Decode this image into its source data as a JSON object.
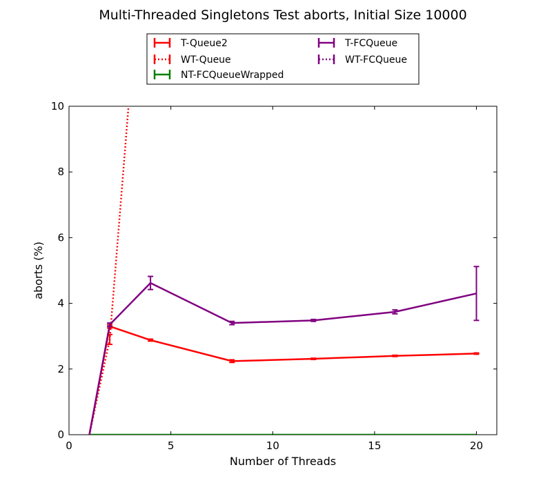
{
  "chart_data": {
    "type": "line",
    "title": "Multi-Threaded Singletons Test aborts, Initial Size 10000",
    "xlabel": "Number of Threads",
    "ylabel": "aborts (%)",
    "xlim": [
      0,
      21
    ],
    "ylim": [
      0,
      10
    ],
    "grid": false,
    "legend_position": "top-center",
    "xticks": [
      {
        "value": 0,
        "label": "0"
      },
      {
        "value": 5,
        "label": "5"
      },
      {
        "value": 10,
        "label": "10"
      },
      {
        "value": 15,
        "label": "15"
      },
      {
        "value": 20,
        "label": "20"
      }
    ],
    "yticks": [
      {
        "value": 0,
        "label": "0"
      },
      {
        "value": 2,
        "label": "2"
      },
      {
        "value": 4,
        "label": "4"
      },
      {
        "value": 6,
        "label": "6"
      },
      {
        "value": 8,
        "label": "8"
      },
      {
        "value": 10,
        "label": "10"
      }
    ],
    "series": [
      {
        "name": "T-Queue2",
        "color": "#ff0000",
        "style": "solid",
        "points": [
          {
            "x": 1,
            "y": 0.0,
            "err": 0.0
          },
          {
            "x": 2,
            "y": 3.3,
            "err": 0.05
          },
          {
            "x": 4,
            "y": 2.88,
            "err": 0.03
          },
          {
            "x": 8,
            "y": 2.24,
            "err": 0.04
          },
          {
            "x": 12,
            "y": 2.31,
            "err": 0.02
          },
          {
            "x": 16,
            "y": 2.4,
            "err": 0.02
          },
          {
            "x": 20,
            "y": 2.47,
            "err": 0.02
          }
        ]
      },
      {
        "name": "WT-Queue",
        "color": "#ff0000",
        "style": "dotted",
        "points": [
          {
            "x": 1,
            "y": 0.0,
            "err": 0.0
          },
          {
            "x": 2,
            "y": 2.9,
            "err": 0.15
          },
          {
            "x": 3,
            "y": 10.6,
            "err": 0.0
          }
        ]
      },
      {
        "name": "NT-FCQueueWrapped",
        "color": "#008000",
        "style": "solid",
        "points": [
          {
            "x": 1,
            "y": 0.0,
            "err": 0.0
          },
          {
            "x": 2,
            "y": 0.0,
            "err": 0.0
          },
          {
            "x": 4,
            "y": 0.0,
            "err": 0.0
          },
          {
            "x": 8,
            "y": 0.0,
            "err": 0.0
          },
          {
            "x": 12,
            "y": 0.0,
            "err": 0.0
          },
          {
            "x": 16,
            "y": 0.0,
            "err": 0.0
          },
          {
            "x": 20,
            "y": 0.0,
            "err": 0.0
          }
        ]
      },
      {
        "name": "T-FCQueue",
        "color": "#800080",
        "style": "solid",
        "points": [
          {
            "x": 1,
            "y": 0.0,
            "err": 0.0
          },
          {
            "x": 2,
            "y": 3.35,
            "err": 0.05
          },
          {
            "x": 4,
            "y": 4.62,
            "err": 0.2
          },
          {
            "x": 8,
            "y": 3.4,
            "err": 0.05
          },
          {
            "x": 12,
            "y": 3.48,
            "err": 0.03
          },
          {
            "x": 16,
            "y": 3.74,
            "err": 0.06
          },
          {
            "x": 20,
            "y": 4.3,
            "err": 0.82
          }
        ]
      },
      {
        "name": "WT-FCQueue",
        "color": "#800080",
        "style": "dotted",
        "points": []
      }
    ]
  }
}
